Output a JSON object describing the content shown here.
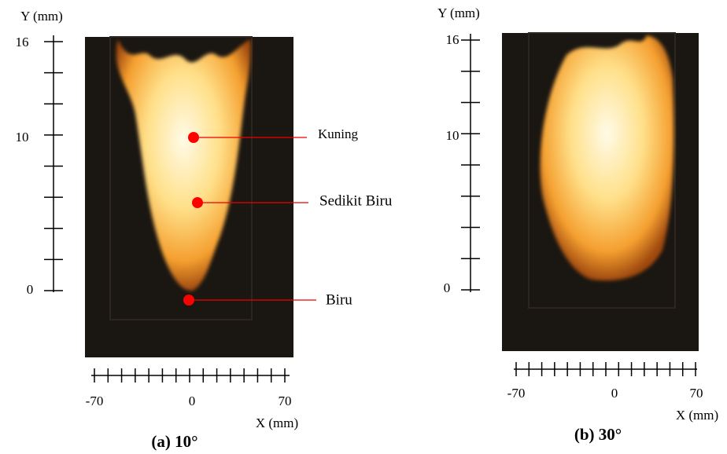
{
  "panels": [
    {
      "y_axis_label": "Y (mm)",
      "y_tick_labels": [
        "16",
        "10",
        "0"
      ],
      "x_tick_labels": [
        "-70",
        "0",
        "70"
      ],
      "x_axis_label": "X (mm)",
      "caption": "(a) 10°",
      "annotations": [
        "Kuning",
        "Sedikit Biru",
        "Biru"
      ]
    },
    {
      "y_axis_label": "Y (mm)",
      "y_tick_labels": [
        "16",
        "10",
        "0"
      ],
      "x_tick_labels": [
        "-70",
        "0",
        "70"
      ],
      "x_axis_label": "X (mm)",
      "caption": "(b) 30°"
    }
  ]
}
